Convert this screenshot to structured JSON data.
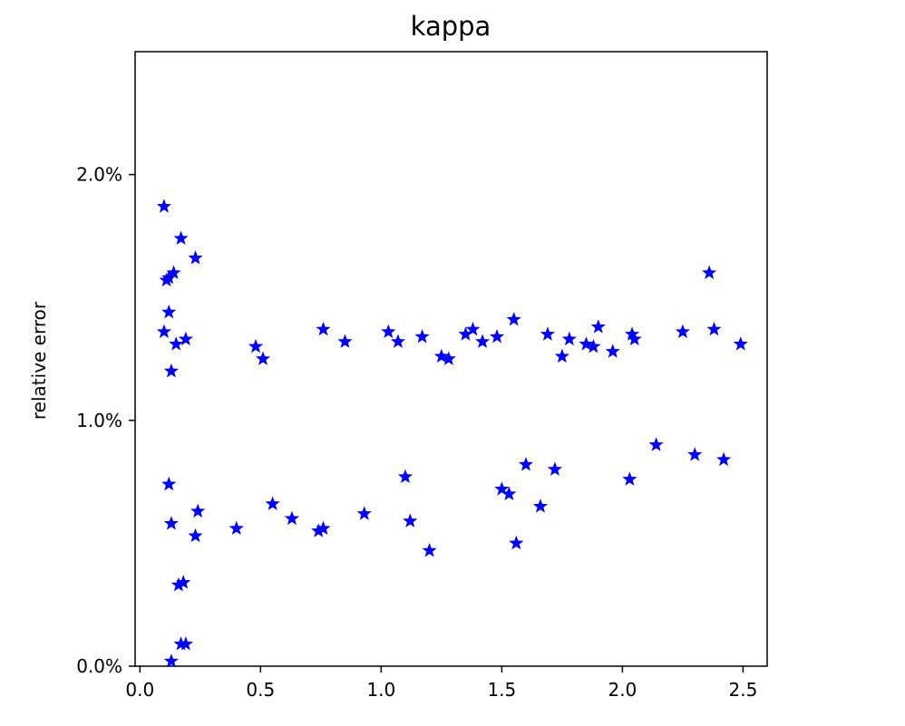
{
  "chart_data": {
    "type": "scatter",
    "title": "kappa",
    "xlabel": "",
    "ylabel": "relative error",
    "xlim": [
      -0.02,
      2.6
    ],
    "ylim": [
      0.0,
      0.025
    ],
    "x_ticks": [
      0.0,
      0.5,
      1.0,
      1.5,
      2.0,
      2.5
    ],
    "x_tick_labels": [
      "0.0",
      "0.5",
      "1.0",
      "1.5",
      "2.0",
      "2.5"
    ],
    "y_ticks": [
      0.0,
      0.01,
      0.02
    ],
    "y_tick_labels": [
      "0.0%",
      "1.0%",
      "2.0%"
    ],
    "grid": false,
    "marker": "star",
    "marker_color": "#0000ff",
    "series": [
      {
        "x": [
          0.1,
          0.11,
          0.12,
          0.14,
          0.17,
          0.23,
          0.12,
          0.13,
          0.1,
          0.15,
          0.19,
          0.13,
          0.16,
          0.18,
          0.17,
          0.19,
          0.13,
          0.24,
          0.23,
          0.12,
          0.4,
          0.55,
          0.63,
          0.74,
          0.76,
          0.48,
          0.51,
          0.76,
          0.85,
          0.93,
          1.12,
          1.2,
          1.03,
          1.07,
          1.17,
          1.25,
          1.35,
          1.48,
          1.55,
          1.42,
          1.5,
          1.56,
          1.53,
          1.66,
          1.69,
          1.72,
          1.78,
          1.9,
          1.85,
          2.03,
          2.04,
          2.14,
          2.25,
          2.36,
          2.38,
          2.42,
          2.3,
          2.49,
          1.88,
          1.96,
          2.05,
          1.75,
          1.6,
          1.38,
          1.28,
          1.1
        ],
        "y": [
          0.0187,
          0.0157,
          0.0158,
          0.016,
          0.0174,
          0.0166,
          0.0144,
          0.012,
          0.0136,
          0.0131,
          0.0133,
          0.0058,
          0.0033,
          0.0034,
          0.0009,
          0.0009,
          0.0002,
          0.0063,
          0.0053,
          0.0074,
          0.0056,
          0.0066,
          0.006,
          0.0055,
          0.0137,
          0.013,
          0.0125,
          0.0056,
          0.0132,
          0.0062,
          0.0059,
          0.0047,
          0.0136,
          0.0132,
          0.0134,
          0.0126,
          0.0135,
          0.0134,
          0.0141,
          0.0132,
          0.0072,
          0.005,
          0.007,
          0.0065,
          0.0135,
          0.008,
          0.0133,
          0.0138,
          0.0131,
          0.0076,
          0.0135,
          0.009,
          0.0136,
          0.016,
          0.0137,
          0.0084,
          0.0086,
          0.0131,
          0.013,
          0.0128,
          0.0133,
          0.0126,
          0.0082,
          0.0137,
          0.0125,
          0.0077
        ]
      }
    ]
  }
}
